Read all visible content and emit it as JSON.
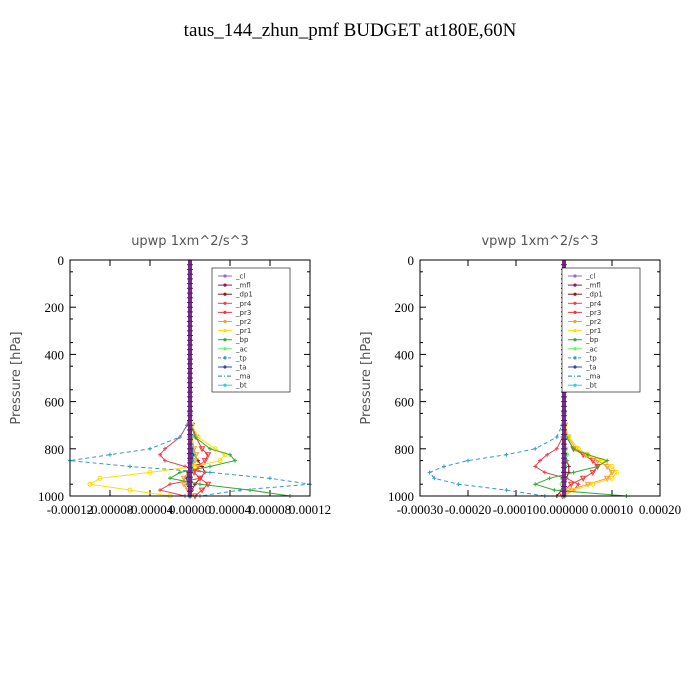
{
  "page": {
    "title": "taus_144_zhun_pmf  BUDGET at180E,60N"
  },
  "chart_data": [
    {
      "type": "line",
      "title": "upwp   1xm^2/s^3",
      "ylabel": "Pressure [hPa]",
      "xlabel": "",
      "xlim": [
        -0.00012,
        0.00012
      ],
      "ylim": [
        1000,
        0
      ],
      "xticks": [
        "-0.00012",
        "-0.00008",
        "-0.00004",
        "0.00000",
        "0.00004",
        "0.00008",
        "0.00012"
      ],
      "yticks": [
        "0",
        "200",
        "400",
        "600",
        "800",
        "1000"
      ],
      "grid": false,
      "legend_position": "top-right",
      "y": [
        650,
        700,
        750,
        800,
        825,
        850,
        875,
        900,
        925,
        950,
        975,
        1000
      ],
      "series": [
        {
          "name": "_cl",
          "color": "#9966cc",
          "marker": "dot",
          "dash": "none",
          "values": [
            0,
            0,
            0,
            0,
            0,
            0,
            0,
            0,
            0,
            0,
            0,
            0
          ]
        },
        {
          "name": "_mfl",
          "color": "#8b1a5a",
          "marker": "dot",
          "dash": "none",
          "values": [
            0,
            0,
            0,
            0,
            0,
            0,
            0,
            0,
            0,
            0,
            0,
            0
          ]
        },
        {
          "name": "_dp1",
          "color": "#8b1a1a",
          "marker": "cross",
          "dash": "none",
          "values": [
            0,
            0,
            0,
            2e-06,
            4e-06,
            8e-06,
            1.2e-05,
            1.5e-05,
            1e-05,
            5e-06,
            2e-06,
            0
          ]
        },
        {
          "name": "_pr4",
          "color": "#e8414f",
          "marker": "cross",
          "dash": "none",
          "values": [
            0,
            -3e-06,
            -1e-05,
            -2.5e-05,
            -3e-05,
            -2.5e-05,
            -5e-06,
            1.5e-05,
            1e-05,
            -2e-05,
            -3e-05,
            -5e-06
          ]
        },
        {
          "name": "_pr3",
          "color": "#ff3333",
          "marker": "tri",
          "dash": "none",
          "values": [
            0,
            2e-06,
            6e-06,
            1.2e-05,
            1.8e-05,
            1.5e-05,
            8e-06,
            4e-06,
            1e-05,
            1.8e-05,
            1.2e-05,
            5e-06
          ]
        },
        {
          "name": "_pr2",
          "color": "#ff9933",
          "marker": "tri",
          "dash": "none",
          "values": [
            0,
            0,
            2e-06,
            4e-06,
            6e-06,
            5e-06,
            2e-06,
            -2e-06,
            -6e-06,
            -6e-06,
            -2e-06,
            0
          ]
        },
        {
          "name": "_pr1",
          "color": "#ffdd00",
          "marker": "circle",
          "dash": "none",
          "values": [
            0,
            2e-06,
            8e-06,
            2.5e-05,
            3.5e-05,
            3e-05,
            5e-06,
            -4e-05,
            -9e-05,
            -0.0001,
            -6e-05,
            -2e-05
          ]
        },
        {
          "name": "_bp",
          "color": "#33aa33",
          "marker": "cross",
          "dash": "none",
          "values": [
            0,
            1e-06,
            5e-06,
            2e-05,
            4e-05,
            4.5e-05,
            2e-05,
            -1e-05,
            -2e-05,
            1e-05,
            6e-05,
            0.0001
          ]
        },
        {
          "name": "_ac",
          "color": "#66ee66",
          "marker": "circle",
          "dash": "none",
          "values": [
            0,
            0,
            1e-06,
            2e-06,
            4e-06,
            3e-06,
            1e-06,
            0,
            -2e-06,
            -2e-06,
            0,
            0
          ]
        },
        {
          "name": "_tp",
          "color": "#3399cc",
          "marker": "cross",
          "dash": "dash",
          "values": [
            0,
            -3e-06,
            -1e-05,
            -4e-05,
            -8e-05,
            -0.00012,
            -6e-05,
            2e-05,
            8e-05,
            0.00012,
            5e-05,
            1e-05
          ]
        },
        {
          "name": "_ta",
          "color": "#3344aa",
          "marker": "dot",
          "dash": "none",
          "values": [
            0,
            0,
            1e-06,
            2e-06,
            3e-06,
            2e-06,
            0,
            -2e-06,
            -3e-06,
            -2e-06,
            0,
            0
          ]
        },
        {
          "name": "_ma",
          "color": "#1188aa",
          "marker": "none",
          "dash": "dashdot",
          "values": [
            0,
            0,
            0,
            0,
            0,
            0,
            0,
            0,
            0,
            0,
            0,
            0
          ]
        },
        {
          "name": "_bt",
          "color": "#33ccdd",
          "marker": "circle",
          "dash": "none",
          "values": [
            0,
            0,
            0,
            0,
            0,
            0,
            0,
            0,
            0,
            0,
            0,
            0
          ]
        }
      ]
    },
    {
      "type": "line",
      "title": "vpwp   1xm^2/s^3",
      "ylabel": "Pressure [hPa]",
      "xlabel": "",
      "xlim": [
        -0.0003,
        0.0002
      ],
      "ylim": [
        1000,
        0
      ],
      "xticks": [
        "-0.00030",
        "-0.00020",
        "-0.00010",
        "0.000000",
        "0.00010",
        "0.00020"
      ],
      "yticks": [
        "0",
        "200",
        "400",
        "600",
        "800",
        "1000"
      ],
      "grid": false,
      "legend_position": "top-right",
      "y": [
        650,
        700,
        750,
        800,
        825,
        850,
        875,
        900,
        925,
        950,
        975,
        1000
      ],
      "series": [
        {
          "name": "_cl",
          "color": "#9966cc",
          "marker": "dot",
          "dash": "none",
          "values": [
            0,
            0,
            0,
            0,
            0,
            0,
            0,
            0,
            0,
            0,
            0,
            0
          ]
        },
        {
          "name": "_mfl",
          "color": "#8b1a5a",
          "marker": "dot",
          "dash": "none",
          "values": [
            0,
            0,
            0,
            0,
            0,
            0,
            0,
            0,
            0,
            0,
            0,
            0
          ]
        },
        {
          "name": "_dp1",
          "color": "#8b1a1a",
          "marker": "cross",
          "dash": "none",
          "values": [
            0,
            0,
            0,
            0,
            3e-06,
            6e-06,
            1e-05,
            1e-05,
            5e-06,
            1e-06,
            -5e-06,
            -1.5e-05
          ]
        },
        {
          "name": "_pr4",
          "color": "#e8414f",
          "marker": "cross",
          "dash": "none",
          "values": [
            0,
            0,
            -3e-06,
            -1.5e-05,
            -3.5e-05,
            -5e-05,
            -6e-05,
            -4e-05,
            5e-06,
            3e-05,
            2e-05,
            0
          ]
        },
        {
          "name": "_pr3",
          "color": "#ff3333",
          "marker": "tri",
          "dash": "none",
          "values": [
            0,
            1e-06,
            5e-06,
            2e-05,
            4e-05,
            6e-05,
            7e-05,
            6e-05,
            4e-05,
            1.5e-05,
            0,
            -3e-06
          ]
        },
        {
          "name": "_pr2",
          "color": "#ff9933",
          "marker": "tri",
          "dash": "none",
          "values": [
            0,
            2e-06,
            8e-06,
            2.5e-05,
            4.5e-05,
            7e-05,
            9e-05,
            0.0001,
            9e-05,
            5e-05,
            1e-05,
            0
          ]
        },
        {
          "name": "_pr1",
          "color": "#ffdd00",
          "marker": "circle",
          "dash": "none",
          "values": [
            0,
            2e-06,
            1e-05,
            3e-05,
            5e-05,
            8e-05,
            0.0001,
            0.00011,
            0.0001,
            6e-05,
            2e-05,
            0
          ]
        },
        {
          "name": "_bp",
          "color": "#33aa33",
          "marker": "cross",
          "dash": "none",
          "values": [
            0,
            1e-06,
            5e-06,
            2e-05,
            5e-05,
            9e-05,
            7e-05,
            2e-05,
            -3e-05,
            -6e-05,
            -2e-05,
            0.00013
          ]
        },
        {
          "name": "_ac",
          "color": "#66ee66",
          "marker": "circle",
          "dash": "none",
          "values": [
            0,
            0,
            1e-06,
            3e-06,
            5e-06,
            4e-06,
            2e-06,
            0,
            -3e-06,
            -4e-06,
            0,
            0
          ]
        },
        {
          "name": "_tp",
          "color": "#3399cc",
          "marker": "cross",
          "dash": "dash",
          "values": [
            0,
            -4e-06,
            -1.5e-05,
            -6e-05,
            -0.00012,
            -0.0002,
            -0.00025,
            -0.00028,
            -0.00027,
            -0.00022,
            -0.00012,
            -4e-05
          ]
        },
        {
          "name": "_ta",
          "color": "#3344aa",
          "marker": "dot",
          "dash": "none",
          "values": [
            0,
            0,
            1e-06,
            2e-06,
            3e-06,
            2e-06,
            0,
            -2e-06,
            -3e-06,
            -2e-06,
            0,
            0
          ]
        },
        {
          "name": "_ma",
          "color": "#1188aa",
          "marker": "none",
          "dash": "dashdot",
          "values": [
            0,
            0,
            0,
            0,
            0,
            0,
            0,
            0,
            0,
            0,
            0,
            0
          ]
        },
        {
          "name": "_bt",
          "color": "#33ccdd",
          "marker": "circle",
          "dash": "none",
          "values": [
            0,
            0,
            0,
            0,
            0,
            0,
            0,
            0,
            0,
            0,
            0,
            0
          ]
        }
      ]
    }
  ]
}
